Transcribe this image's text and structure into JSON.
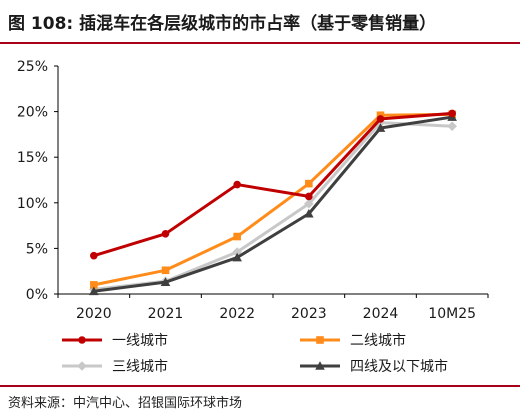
{
  "figure": {
    "title": "图 108: 插混车在各层级城市的市占率（基于零售销量）",
    "source": "资料来源：中汽中心、招银国际环球市场"
  },
  "colors": {
    "tier1": "#c00000",
    "tier2": "#ff8c1a",
    "tier3": "#c8c8c8",
    "tier4": "#3f3f3f",
    "axis": "#000000"
  },
  "chart_data": {
    "type": "line",
    "title": "插混车在各层级城市的市占率（基于零售销量）",
    "categories": [
      "2020",
      "2021",
      "2022",
      "2023",
      "2024",
      "10M25"
    ],
    "y_ticks": [
      "0%",
      "5%",
      "10%",
      "15%",
      "20%",
      "25%"
    ],
    "ylim": [
      0,
      25
    ],
    "unit": "%",
    "grid": false,
    "legend_position": "bottom",
    "series": [
      {
        "name": "一线城市",
        "key": "tier1",
        "marker": "circle",
        "values": [
          4.2,
          6.6,
          12.0,
          10.7,
          19.2,
          19.8
        ]
      },
      {
        "name": "二线城市",
        "key": "tier2",
        "marker": "square",
        "values": [
          1.0,
          2.6,
          6.3,
          12.1,
          19.6,
          19.7
        ]
      },
      {
        "name": "三线城市",
        "key": "tier3",
        "marker": "diamond",
        "values": [
          0.5,
          1.4,
          4.6,
          9.9,
          18.8,
          18.4
        ]
      },
      {
        "name": "四线及以下城市",
        "key": "tier4",
        "marker": "triangle",
        "values": [
          0.3,
          1.3,
          4.0,
          8.8,
          18.2,
          19.4
        ]
      }
    ]
  }
}
